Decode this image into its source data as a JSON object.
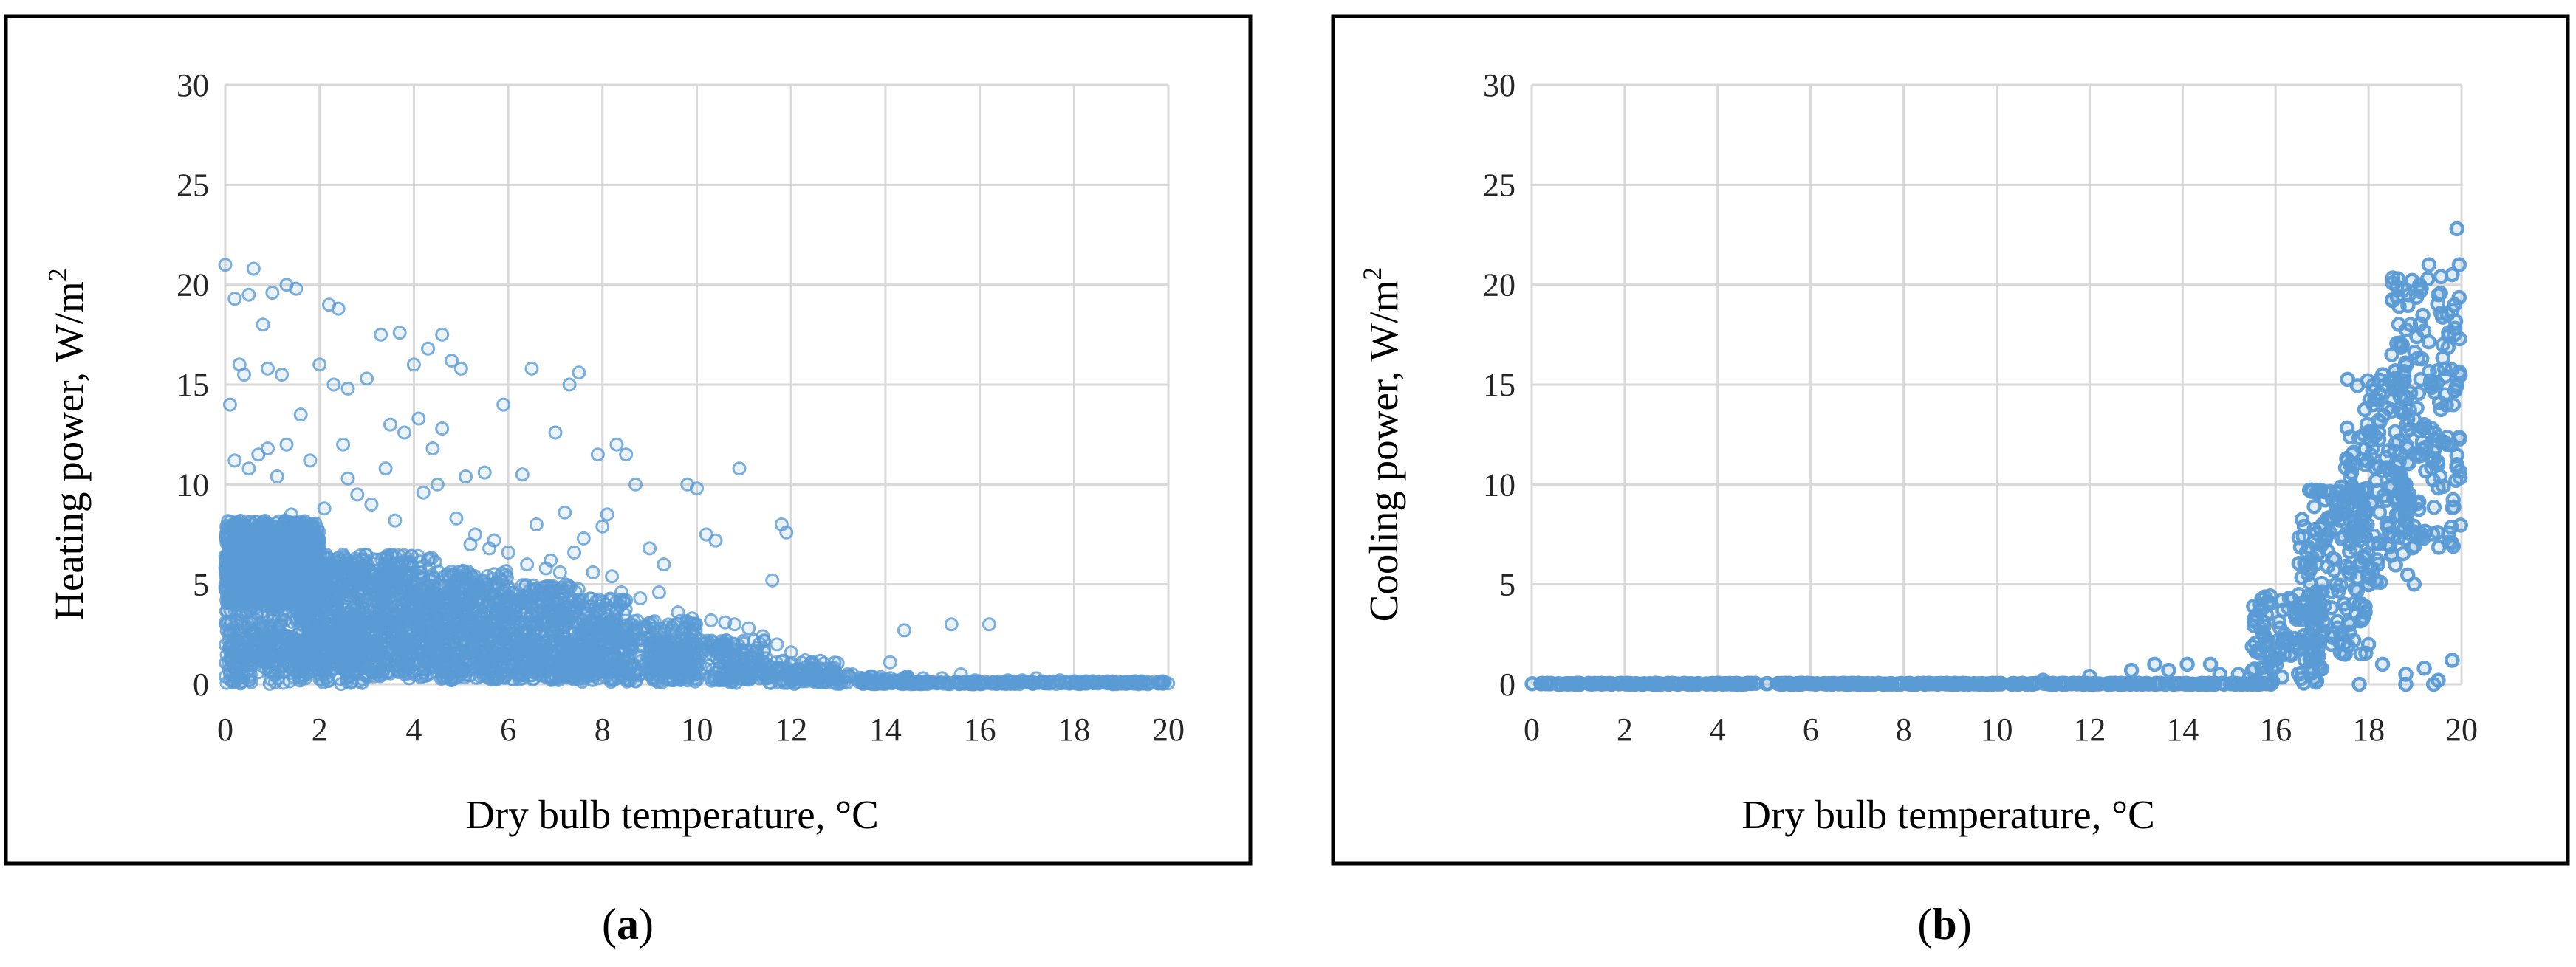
{
  "captions": {
    "a": {
      "open": "(",
      "letter": "a",
      "close": ")"
    },
    "b": {
      "open": "(",
      "letter": "b",
      "close": ")"
    }
  },
  "chart_data": [
    {
      "id": "a",
      "type": "scatter",
      "xlabel": "Dry bulb temperature, °C",
      "ylabel_main": "Heating power,  W/m",
      "ylabel_sup": "2",
      "xlim": [
        0,
        20
      ],
      "ylim": [
        0,
        30
      ],
      "xticks": [
        0,
        2,
        4,
        6,
        8,
        10,
        12,
        14,
        16,
        18,
        20
      ],
      "yticks": [
        0,
        5,
        10,
        15,
        20,
        25,
        30
      ],
      "grid": true,
      "marker_color": "#5b9bd5",
      "marker_style": "light",
      "points": [
        [
          0.0,
          21.0
        ],
        [
          0.6,
          20.8
        ],
        [
          0.2,
          19.3
        ],
        [
          0.5,
          19.5
        ],
        [
          1.3,
          20.0
        ],
        [
          1.5,
          19.8
        ],
        [
          2.2,
          19.0
        ],
        [
          2.4,
          18.8
        ],
        [
          0.8,
          18.0
        ],
        [
          1.0,
          19.6
        ],
        [
          0.3,
          16.0
        ],
        [
          0.1,
          14.0
        ],
        [
          0.4,
          15.5
        ],
        [
          0.9,
          15.8
        ],
        [
          1.2,
          15.5
        ],
        [
          1.6,
          13.5
        ],
        [
          2.0,
          16.0
        ],
        [
          2.3,
          15.0
        ],
        [
          2.6,
          14.8
        ],
        [
          3.0,
          15.3
        ],
        [
          3.3,
          17.5
        ],
        [
          3.7,
          17.6
        ],
        [
          4.0,
          16.0
        ],
        [
          4.3,
          16.8
        ],
        [
          4.6,
          17.5
        ],
        [
          4.8,
          16.2
        ],
        [
          5.0,
          15.8
        ],
        [
          3.5,
          13.0
        ],
        [
          3.8,
          12.6
        ],
        [
          4.1,
          13.3
        ],
        [
          4.4,
          11.8
        ],
        [
          4.6,
          12.8
        ],
        [
          5.1,
          10.4
        ],
        [
          5.5,
          10.6
        ],
        [
          5.9,
          14.0
        ],
        [
          6.3,
          10.5
        ],
        [
          6.5,
          15.8
        ],
        [
          7.0,
          12.6
        ],
        [
          7.3,
          15.0
        ],
        [
          7.5,
          15.6
        ],
        [
          7.9,
          11.5
        ],
        [
          8.1,
          8.5
        ],
        [
          8.3,
          12.0
        ],
        [
          8.5,
          11.5
        ],
        [
          8.7,
          10.0
        ],
        [
          8.0,
          7.9
        ],
        [
          7.6,
          7.3
        ],
        [
          7.2,
          8.6
        ],
        [
          6.9,
          6.2
        ],
        [
          6.6,
          8.0
        ],
        [
          9.0,
          6.8
        ],
        [
          9.3,
          6.0
        ],
        [
          9.8,
          10.0
        ],
        [
          10.0,
          9.8
        ],
        [
          10.2,
          7.5
        ],
        [
          10.4,
          7.2
        ],
        [
          10.9,
          10.8
        ],
        [
          11.6,
          5.2
        ],
        [
          11.8,
          8.0
        ],
        [
          11.9,
          7.6
        ],
        [
          2.5,
          12.0
        ],
        [
          2.8,
          9.5
        ],
        [
          3.1,
          9.0
        ],
        [
          3.4,
          10.8
        ],
        [
          1.8,
          11.2
        ],
        [
          1.3,
          12.0
        ],
        [
          1.1,
          10.4
        ],
        [
          0.7,
          11.5
        ],
        [
          0.2,
          11.2
        ],
        [
          0.5,
          10.8
        ],
        [
          0.9,
          11.8
        ],
        [
          1.4,
          8.5
        ],
        [
          2.1,
          8.8
        ],
        [
          2.6,
          10.3
        ],
        [
          3.6,
          8.2
        ],
        [
          4.2,
          9.6
        ],
        [
          4.5,
          10.0
        ],
        [
          4.9,
          8.3
        ],
        [
          5.3,
          7.5
        ],
        [
          5.7,
          7.2
        ],
        [
          5.2,
          7.0
        ],
        [
          5.6,
          6.8
        ],
        [
          6.0,
          6.6
        ],
        [
          6.4,
          6.0
        ],
        [
          6.8,
          5.8
        ],
        [
          7.1,
          5.6
        ],
        [
          7.4,
          6.6
        ],
        [
          7.8,
          5.6
        ],
        [
          8.2,
          5.4
        ],
        [
          8.4,
          4.6
        ],
        [
          8.8,
          4.3
        ],
        [
          9.2,
          4.6
        ],
        [
          9.6,
          3.6
        ],
        [
          9.9,
          3.3
        ],
        [
          10.3,
          3.2
        ],
        [
          10.6,
          3.1
        ],
        [
          10.8,
          3.0
        ],
        [
          11.1,
          2.8
        ],
        [
          11.4,
          2.4
        ],
        [
          11.7,
          2.0
        ],
        [
          12.0,
          1.6
        ],
        [
          12.3,
          1.2
        ],
        [
          12.6,
          0.8
        ],
        [
          12.9,
          0.6
        ],
        [
          13.3,
          0.5
        ],
        [
          13.7,
          0.4
        ],
        [
          14.1,
          1.1
        ],
        [
          14.4,
          2.7
        ],
        [
          14.8,
          0.3
        ],
        [
          15.2,
          0.3
        ],
        [
          15.4,
          3.0
        ],
        [
          15.6,
          0.5
        ],
        [
          16.2,
          3.0
        ],
        [
          16.6,
          0.2
        ],
        [
          17.2,
          0.3
        ],
        [
          17.7,
          0.2
        ],
        [
          18.4,
          0.15
        ],
        [
          19.3,
          0.15
        ],
        [
          15.9,
          0.2
        ],
        [
          16.9,
          0.2
        ],
        [
          14.2,
          0.2
        ],
        [
          12.2,
          0.5
        ],
        [
          11.5,
          1.0
        ],
        [
          11.0,
          1.5
        ],
        [
          10.5,
          2.0
        ],
        [
          10.1,
          1.8
        ],
        [
          9.7,
          2.5
        ],
        [
          9.4,
          2.2
        ],
        [
          9.1,
          2.8
        ],
        [
          8.6,
          3.0
        ],
        [
          0.1,
          0.5
        ],
        [
          0.3,
          1.0
        ],
        [
          0.5,
          0.2
        ],
        [
          0.8,
          1.2
        ],
        [
          1.2,
          0.6
        ],
        [
          1.7,
          0.3
        ],
        [
          2.2,
          1.0
        ],
        [
          2.7,
          0.5
        ],
        [
          3.2,
          0.8
        ],
        [
          3.9,
          0.3
        ],
        [
          4.7,
          0.6
        ],
        [
          5.4,
          0.4
        ],
        [
          6.2,
          0.5
        ],
        [
          7.0,
          0.3
        ],
        [
          7.7,
          0.4
        ],
        [
          8.5,
          0.3
        ],
        [
          9.5,
          0.2
        ],
        [
          10.7,
          0.3
        ]
      ],
      "bands": [
        {
          "x0": 0.0,
          "x1": 2.0,
          "lo": 4.0,
          "hi": 8.2,
          "n": 900
        },
        {
          "x0": 0.0,
          "x1": 3.0,
          "lo": 1.0,
          "hi": 6.5,
          "n": 550
        },
        {
          "x0": 0.0,
          "x1": 3.0,
          "lo": 0.0,
          "hi": 2.5,
          "n": 260
        },
        {
          "x0": 1.5,
          "x1": 4.5,
          "lo": 0.5,
          "hi": 6.5,
          "n": 650
        },
        {
          "x0": 3.0,
          "x1": 6.0,
          "lo": 0.3,
          "hi": 5.7,
          "n": 520
        },
        {
          "x0": 4.5,
          "x1": 7.5,
          "lo": 0.2,
          "hi": 5.0,
          "n": 440
        },
        {
          "x0": 6.0,
          "x1": 8.5,
          "lo": 0.2,
          "hi": 4.3,
          "n": 340
        },
        {
          "x0": 7.5,
          "x1": 10.0,
          "lo": 0.1,
          "hi": 3.2,
          "n": 290
        },
        {
          "x0": 9.0,
          "x1": 11.5,
          "lo": 0.1,
          "hi": 2.2,
          "n": 220
        },
        {
          "x0": 10.5,
          "x1": 13.0,
          "lo": 0.05,
          "hi": 1.2,
          "n": 140
        },
        {
          "x0": 12.0,
          "x1": 14.5,
          "lo": 0.0,
          "hi": 0.5,
          "n": 80
        },
        {
          "x0": 13.5,
          "x1": 20.0,
          "lo": 0.0,
          "hi": 0.15,
          "n": 300
        }
      ]
    },
    {
      "id": "b",
      "type": "scatter",
      "xlabel": "Dry bulb temperature, °C",
      "ylabel_main": "Cooling power,  W/m",
      "ylabel_sup": "2",
      "xlim": [
        0,
        20
      ],
      "ylim": [
        0,
        30
      ],
      "xticks": [
        0,
        2,
        4,
        6,
        8,
        10,
        12,
        14,
        16,
        18,
        20
      ],
      "yticks": [
        0,
        5,
        10,
        15,
        20,
        25,
        30
      ],
      "grid": true,
      "marker_color": "#5b9bd5",
      "marker_style": "bold",
      "points": [
        [
          11.0,
          0.2
        ],
        [
          12.0,
          0.4
        ],
        [
          12.9,
          0.7
        ],
        [
          13.4,
          1.0
        ],
        [
          13.7,
          0.7
        ],
        [
          14.1,
          1.0
        ],
        [
          14.6,
          1.0
        ],
        [
          14.8,
          0.5
        ],
        [
          15.2,
          0.5
        ],
        [
          15.5,
          0.7
        ],
        [
          16.0,
          1.5
        ],
        [
          16.2,
          2.5
        ],
        [
          16.5,
          4.5
        ],
        [
          16.7,
          5.5
        ],
        [
          16.9,
          6.5
        ],
        [
          17.1,
          7.5
        ],
        [
          17.3,
          8.5
        ],
        [
          17.5,
          9.5
        ],
        [
          17.7,
          11.0
        ],
        [
          17.9,
          12.5
        ],
        [
          18.1,
          14.0
        ],
        [
          18.3,
          15.5
        ],
        [
          18.5,
          16.5
        ],
        [
          18.7,
          17.0
        ],
        [
          18.9,
          18.0
        ],
        [
          19.1,
          20.0
        ],
        [
          19.3,
          21.0
        ],
        [
          19.5,
          19.5
        ],
        [
          19.7,
          18.5
        ],
        [
          19.8,
          20.5
        ],
        [
          19.9,
          22.8
        ],
        [
          19.95,
          21.0
        ],
        [
          19.85,
          19.0
        ],
        [
          19.6,
          17.0
        ],
        [
          19.4,
          15.0
        ],
        [
          19.2,
          13.0
        ],
        [
          19.0,
          11.5
        ],
        [
          18.8,
          10.0
        ],
        [
          18.6,
          8.5
        ],
        [
          18.4,
          7.0
        ],
        [
          18.2,
          6.0
        ],
        [
          18.0,
          5.0
        ],
        [
          17.8,
          4.0
        ],
        [
          17.6,
          3.0
        ],
        [
          17.4,
          2.5
        ],
        [
          17.2,
          2.0
        ],
        [
          19.9,
          15.0
        ],
        [
          19.9,
          11.0
        ],
        [
          19.85,
          17.5
        ],
        [
          19.7,
          12.0
        ],
        [
          18.8,
          0.5
        ],
        [
          19.2,
          0.8
        ],
        [
          19.5,
          0.2
        ],
        [
          19.8,
          1.2
        ],
        [
          17.5,
          1.5
        ],
        [
          18.3,
          1.0
        ],
        [
          18.0,
          2.0
        ],
        [
          18.8,
          0.0
        ],
        [
          19.4,
          0.0
        ],
        [
          17.8,
          0.0
        ]
      ],
      "bands": [
        {
          "x0": 0.0,
          "x1": 16.0,
          "lo": 0.0,
          "hi": 0.05,
          "n": 450
        },
        {
          "x0": 15.5,
          "x1": 17.0,
          "lo": 0.0,
          "hi": 4.5,
          "n": 110
        },
        {
          "x0": 16.5,
          "x1": 18.0,
          "lo": 1.5,
          "hi": 10.0,
          "n": 150
        },
        {
          "x0": 17.5,
          "x1": 19.0,
          "lo": 5.0,
          "hi": 15.5,
          "n": 150
        },
        {
          "x0": 18.5,
          "x1": 20.0,
          "lo": 6.5,
          "hi": 20.5,
          "n": 170
        }
      ]
    }
  ]
}
